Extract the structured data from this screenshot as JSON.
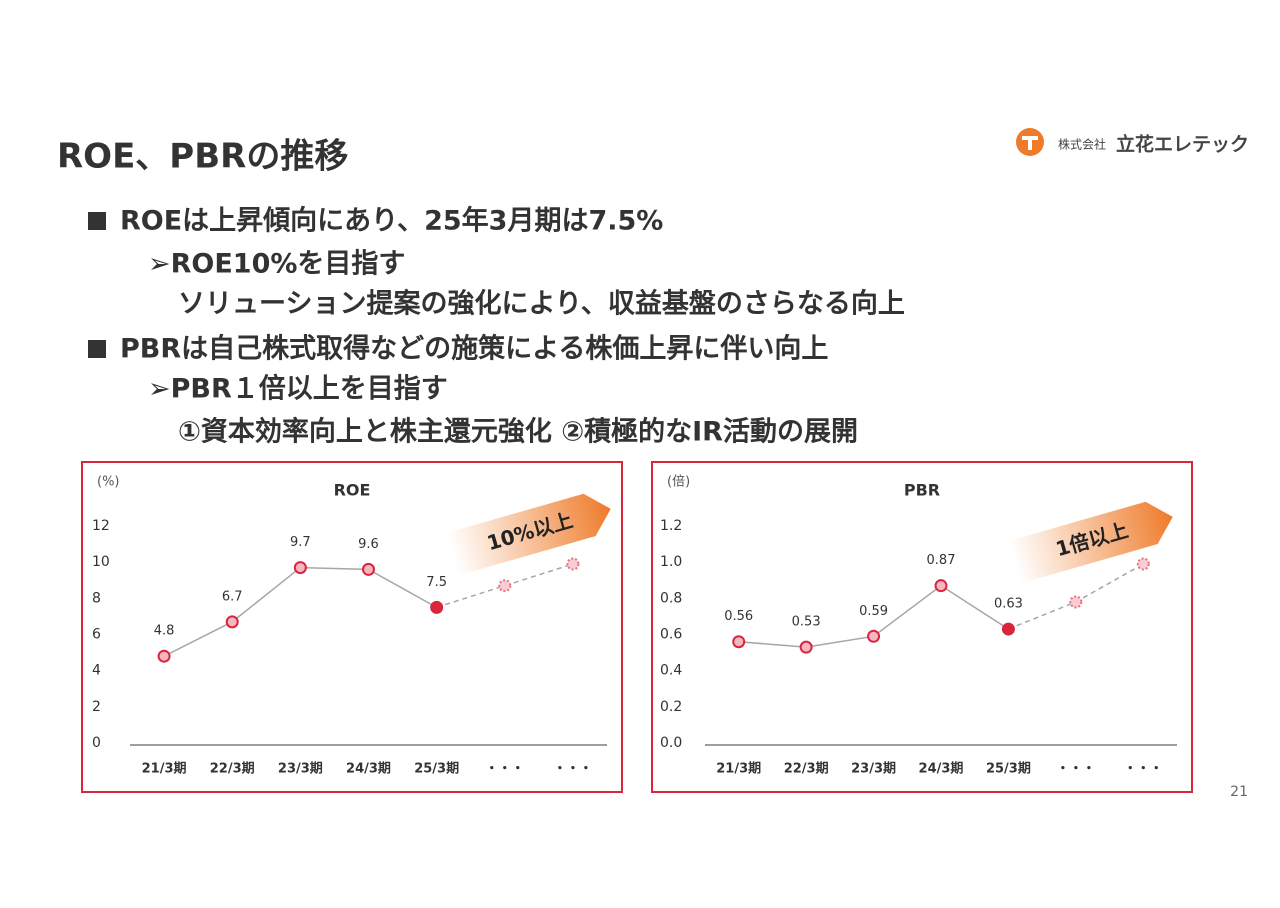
{
  "slide": {
    "title": "ROE、PBRの推移",
    "bullets": [
      "ROEは上昇傾向にあり、25年3月期は7.5%",
      "➢ROE10%を目指す",
      "ソリューション提案の強化により、収益基盤のさらなる向上",
      "PBRは自己株式取得などの施策による株価上昇に伴い向上",
      "➢PBR１倍以上を目指す",
      "①資本効率向上と株主還元強化 ②積極的なIR活動の展開"
    ],
    "logo": {
      "prefix": "株式会社",
      "name": "立花エレテック"
    },
    "page_number": "21"
  },
  "chart_data": [
    {
      "type": "line",
      "title": "ROE",
      "unit_label": "(%)",
      "annotation": "10%以上",
      "categories": [
        "21/3期",
        "22/3期",
        "23/3期",
        "24/3期",
        "25/3期",
        "・・・",
        "・・・"
      ],
      "series": [
        {
          "color": "#a6a6a6",
          "marker_stroke": "#d9263d",
          "marker_fills": [
            "#f4b6bf",
            "#f4b6bf",
            "#f4b6bf",
            "#f4b6bf",
            "#d9263d",
            null,
            null
          ],
          "labels": true,
          "values": [
            4.8,
            6.7,
            9.7,
            9.6,
            7.5,
            null,
            null
          ]
        },
        {
          "color": "#a6a6a6",
          "dashed": true,
          "marker_stroke": "#e8707f",
          "marker_fills": [
            null,
            null,
            null,
            null,
            null,
            "#f8cdd3",
            "#f8cdd3"
          ],
          "values": [
            null,
            null,
            null,
            null,
            7.5,
            8.7,
            9.9
          ]
        }
      ],
      "ylim": [
        0,
        12
      ],
      "yticks": [
        0,
        2,
        4,
        6,
        8,
        10,
        12
      ]
    },
    {
      "type": "line",
      "title": "PBR",
      "unit_label": "(倍)",
      "annotation": "1倍以上",
      "categories": [
        "21/3期",
        "22/3期",
        "23/3期",
        "24/3期",
        "25/3期",
        "・・・",
        "・・・"
      ],
      "series": [
        {
          "color": "#a6a6a6",
          "marker_stroke": "#d9263d",
          "marker_fills": [
            "#f4b6bf",
            "#f4b6bf",
            "#f4b6bf",
            "#f4b6bf",
            "#d9263d",
            null,
            null
          ],
          "labels": true,
          "values": [
            0.56,
            0.53,
            0.59,
            0.87,
            0.63,
            null,
            null
          ]
        },
        {
          "color": "#a6a6a6",
          "dashed": true,
          "marker_stroke": "#e8707f",
          "marker_fills": [
            null,
            null,
            null,
            null,
            null,
            "#f8cdd3",
            "#f8cdd3"
          ],
          "values": [
            null,
            null,
            null,
            null,
            0.63,
            0.78,
            0.99
          ]
        }
      ],
      "ylim": [
        0,
        1.2
      ],
      "yticks": [
        {
          "value": 0,
          "label": "0.0"
        },
        0.2,
        0.4,
        0.6,
        0.8,
        {
          "value": 1,
          "label": "1.0"
        },
        1.2
      ]
    }
  ]
}
